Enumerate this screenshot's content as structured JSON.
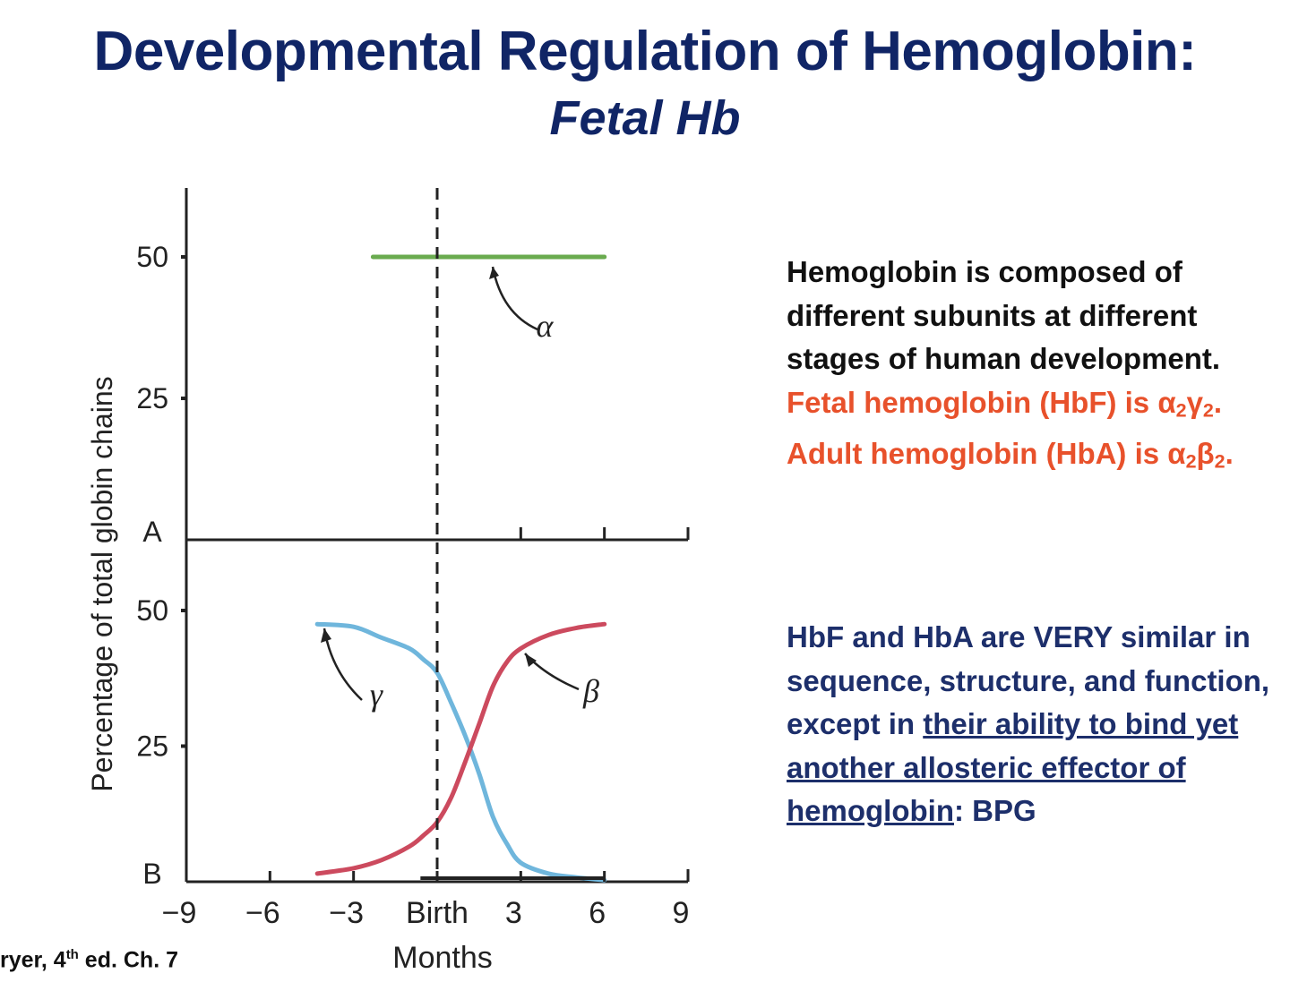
{
  "title": "Developmental Regulation of Hemoglobin:",
  "subtitle": "Fetal Hb",
  "paragraph1": {
    "black": "Hemoglobin is composed of different subunits at different stages of human development.",
    "red_prefix": "Fetal hemoglobin (HbF) is",
    "hbf_formula": {
      "a": "α",
      "a_sub": "2",
      "b": "γ",
      "b_sub": "2",
      "end": "."
    },
    "red_middle": "Adult hemoglobin (HbA) is",
    "hba_formula": {
      "a": "α",
      "a_sub": "2",
      "b": "β",
      "b_sub": "2",
      "end": "."
    }
  },
  "paragraph2": {
    "plain": "HbF and HbA are VERY similar in sequence, structure, and function, except in",
    "underlined": "their ability to bind yet another allosteric effector of hemoglobin",
    "end": ":  BPG"
  },
  "citation": {
    "prefix": "ryer, 4",
    "sup": "th",
    "suffix": " ed. Ch. 7"
  },
  "colors": {
    "title": "#102566",
    "body_dark": "#111111",
    "body_blue": "#1d2f6b",
    "highlight_red": "#e8512b",
    "alpha": "#6aab4f",
    "gamma": "#6fb6dc",
    "beta": "#cc4a5e"
  },
  "chart_data": {
    "type": "line",
    "ylabel": "Percentage of total globin chains",
    "xlabel": "Months",
    "x_ticks": [
      {
        "value": -9,
        "label": "−9"
      },
      {
        "value": -6,
        "label": "−6"
      },
      {
        "value": -3,
        "label": "−3"
      },
      {
        "value": 0,
        "label": "Birth"
      },
      {
        "value": 3,
        "label": "3"
      },
      {
        "value": 6,
        "label": "6"
      },
      {
        "value": 9,
        "label": "9"
      }
    ],
    "xlim": [
      -9,
      9
    ],
    "birth_line_x": 0,
    "panels": [
      {
        "label": "A",
        "ylim": [
          0,
          50
        ],
        "y_ticks": [
          50,
          25
        ],
        "series": [
          {
            "name": "α",
            "color": "#6aab4f",
            "x": [
              -2.3,
              6
            ],
            "y": [
              50,
              50
            ]
          }
        ]
      },
      {
        "label": "B",
        "ylim": [
          0,
          50
        ],
        "y_ticks": [
          50,
          25
        ],
        "series": [
          {
            "name": "γ",
            "color": "#6fb6dc",
            "x": [
              -4.3,
              -3,
              -2,
              -1,
              -0.5,
              0,
              0.5,
              1,
              1.5,
              2,
              2.5,
              3,
              4,
              5,
              6
            ],
            "y": [
              47.5,
              47,
              45,
              43,
              41,
              38.5,
              33,
              27,
              20,
              12,
              7,
              3.5,
              1.5,
              0.8,
              0.3
            ]
          },
          {
            "name": "β",
            "color": "#cc4a5e",
            "x": [
              -4.3,
              -3,
              -2,
              -1,
              -0.5,
              0,
              0.5,
              1,
              1.5,
              2,
              2.5,
              3,
              4,
              5,
              6
            ],
            "y": [
              1.5,
              2.5,
              4,
              6.5,
              8.5,
              11,
              15.5,
              22,
              29,
              36,
              40.5,
              43,
              45.5,
              46.8,
              47.5
            ]
          }
        ]
      }
    ]
  }
}
